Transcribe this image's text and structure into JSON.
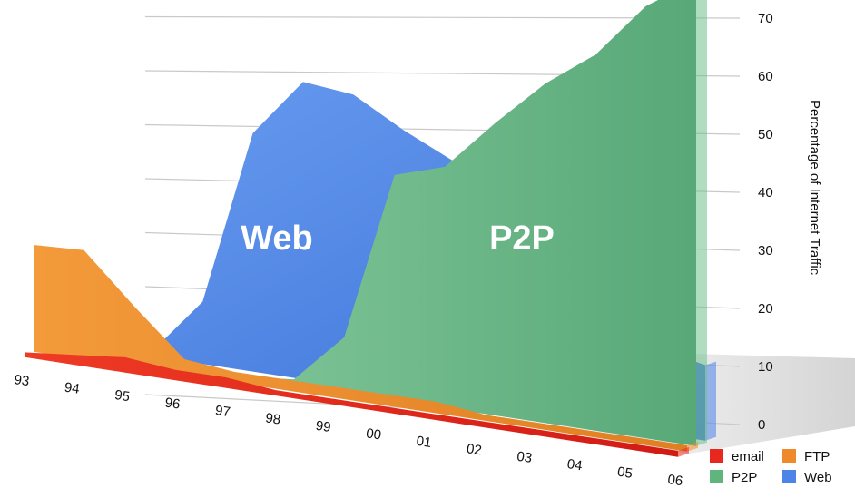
{
  "chart_data": {
    "type": "area",
    "title": "",
    "xlabel": "",
    "ylabel": "Percentage of Internet Traffic",
    "ylim": [
      0,
      70
    ],
    "yticks": [
      "0",
      "10",
      "20",
      "30",
      "40",
      "50",
      "60",
      "70"
    ],
    "categories": [
      "93",
      "94",
      "95",
      "96",
      "97",
      "98",
      "99",
      "00",
      "01",
      "02",
      "03",
      "04",
      "05",
      "06"
    ],
    "series": [
      {
        "name": "email",
        "color": "#e8281e",
        "values": [
          1,
          2,
          3,
          2,
          2,
          1,
          1,
          1,
          1,
          1,
          1,
          1,
          1,
          1
        ]
      },
      {
        "name": "FTP",
        "color": "#ee8a2a",
        "values": [
          22,
          22,
          12,
          3,
          2,
          2,
          2,
          2,
          2,
          1,
          1,
          1,
          1,
          1
        ]
      },
      {
        "name": "P2P",
        "color": "#6fbf8a",
        "values": [
          0,
          0,
          0,
          0,
          0,
          1,
          10,
          40,
          42,
          50,
          57,
          62,
          70,
          74
        ]
      },
      {
        "name": "Web",
        "color": "#4d84e8",
        "values": [
          0,
          0,
          1,
          12,
          45,
          55,
          53,
          47,
          42,
          34,
          27,
          20,
          14,
          12
        ]
      }
    ],
    "area_labels": [
      "Web",
      "P2P"
    ],
    "legend": {
      "position": "bottom-right",
      "items": [
        "email",
        "FTP",
        "P2P",
        "Web"
      ]
    },
    "grid": true
  }
}
